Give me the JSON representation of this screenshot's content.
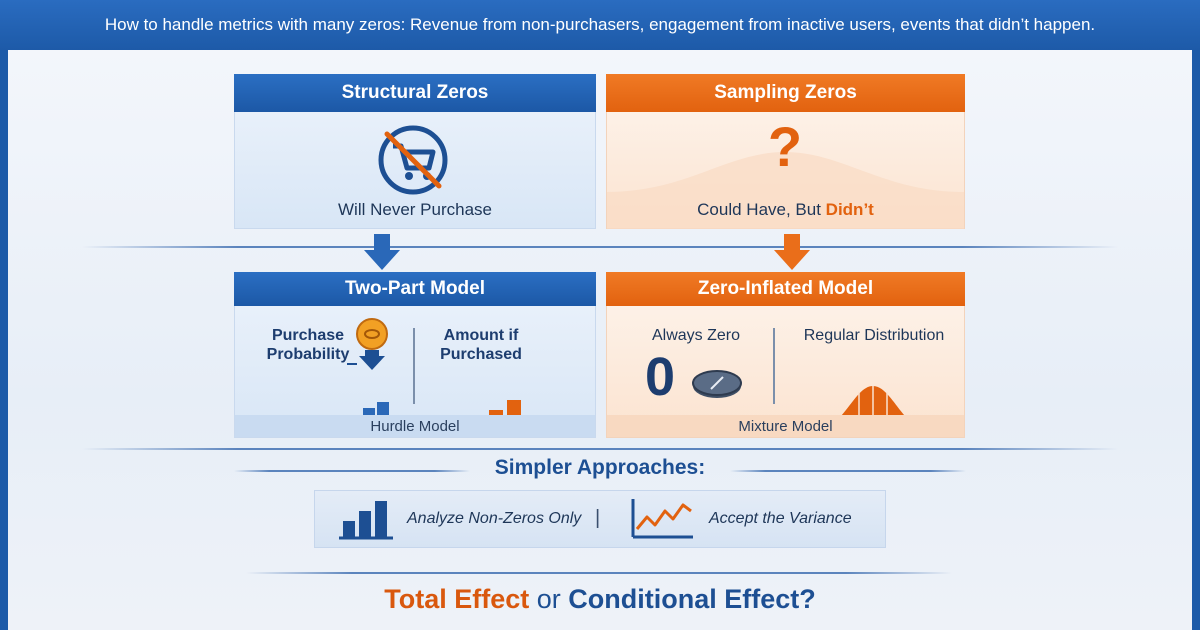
{
  "header": {
    "subtitle": "How to handle metrics with many zeros: Revenue from non-purchasers, engagement from inactive users, events that didn’t happen."
  },
  "zero_types": [
    {
      "title": "Structural Zeros",
      "caption": "Will Never Purchase",
      "icon": "no-cart-icon"
    },
    {
      "title": "Sampling Zeros",
      "caption_prefix": "Could Have, But ",
      "caption_accent": "Didn’t",
      "icon": "question-mark-icon"
    }
  ],
  "models": [
    {
      "title": "Two-Part Model",
      "left_label_line1": "Purchase",
      "left_label_line2": "Probability",
      "right_label_line1": "Amount if",
      "right_label_line2": "Purchased",
      "footer": "Hurdle Model"
    },
    {
      "title": "Zero-Inflated Model",
      "left_label": "Always Zero",
      "zero_glyph": "0",
      "right_label": "Regular Distribution",
      "footer": "Mixture Model"
    }
  ],
  "simpler": {
    "title": "Simpler Approaches:",
    "approaches": [
      "Analyze Non-Zeros Only",
      "Accept the Variance"
    ],
    "separator": "|"
  },
  "question": {
    "part1": "Total Effect",
    "connector": " or ",
    "part2": "Conditional Effect?"
  },
  "colors": {
    "blue": "#1d5aa8",
    "orange": "#e2620f",
    "background": "#eef2f8"
  }
}
